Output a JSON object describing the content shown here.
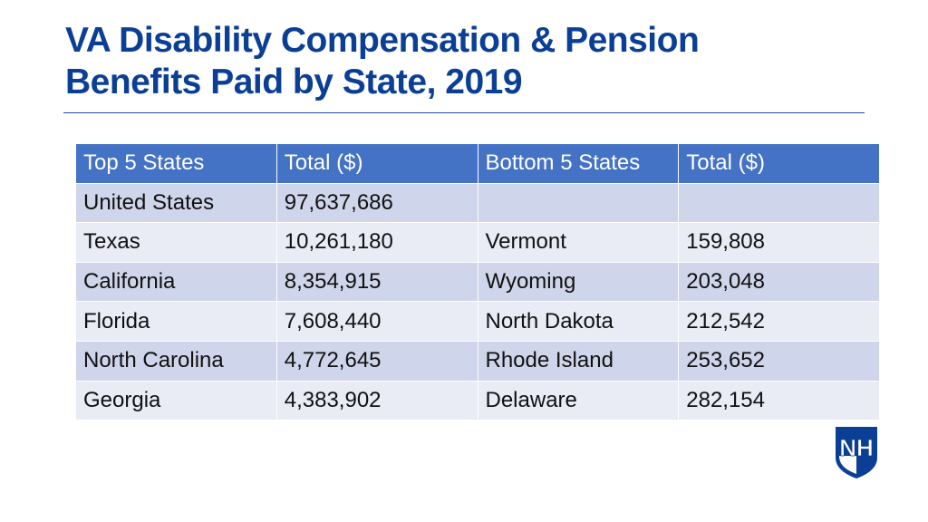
{
  "title_line1": "VA Disability Compensation & Pension",
  "title_line2": "Benefits Paid by State, 2019",
  "table": {
    "headers": [
      "Top 5 States",
      "Total ($)",
      "Bottom 5 States",
      "Total ($)"
    ],
    "rows": [
      [
        "United States",
        "97,637,686",
        "",
        ""
      ],
      [
        "Texas",
        "10,261,180",
        "Vermont",
        "159,808"
      ],
      [
        "California",
        "8,354,915",
        "Wyoming",
        "203,048"
      ],
      [
        "Florida",
        "7,608,440",
        "North Dakota",
        "212,542"
      ],
      [
        "North Carolina",
        "4,772,645",
        "Rhode Island",
        "253,652"
      ],
      [
        "Georgia",
        "4,383,902",
        "Delaware",
        "282,154"
      ]
    ]
  },
  "logo": {
    "text": "NH",
    "icon": "unh-shield-logo",
    "color": "#0b3f96"
  },
  "colors": {
    "header": "#4472c4",
    "row_odd": "#cfd5ea",
    "row_even": "#e9ebf5",
    "title": "#0b3f96"
  }
}
